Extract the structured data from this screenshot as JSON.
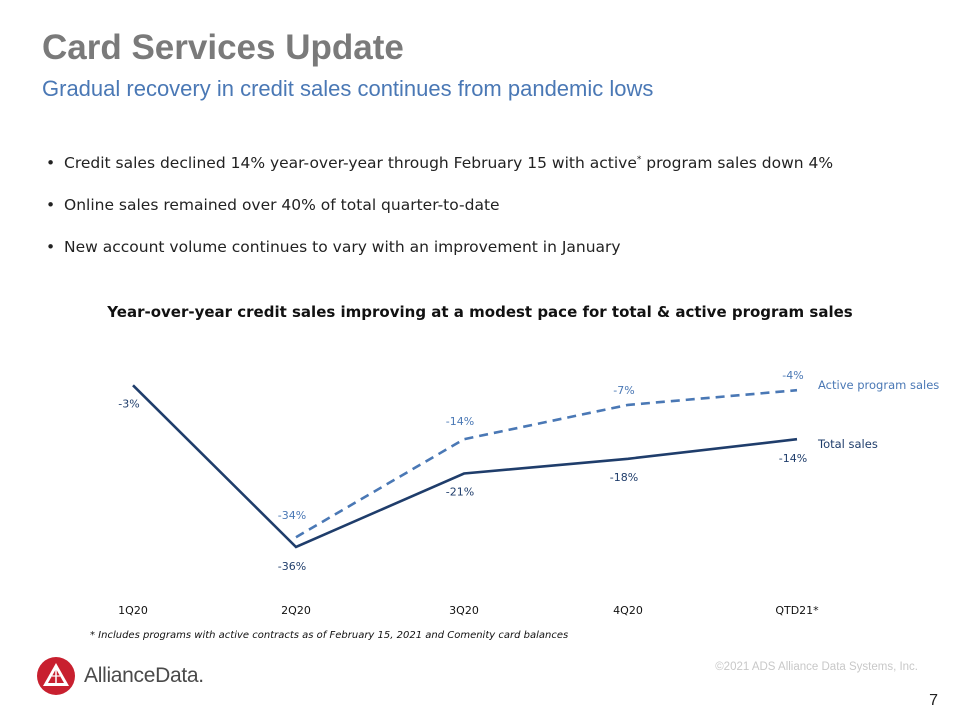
{
  "header": {
    "title": "Card Services Update",
    "subtitle": "Gradual recovery in credit sales continues from pandemic lows"
  },
  "bullets": [
    {
      "text": "Credit sales declined 14% year-over-year through February 15 with active",
      "sup": "*",
      "tail": " program sales down 4%"
    },
    {
      "text": "Online sales remained over 40% of total quarter-to-date",
      "sup": "",
      "tail": ""
    },
    {
      "text": "New account volume continues to vary with an improvement in January",
      "sup": "",
      "tail": ""
    }
  ],
  "chart_data": {
    "type": "line",
    "title": "Year-over-year  credit sales improving at a modest pace for total & active program sales",
    "categories": [
      "1Q20",
      "2Q20",
      "3Q20",
      "4Q20",
      "QTD21*"
    ],
    "series": [
      {
        "name": "Total sales",
        "values": [
          -3,
          -36,
          -21,
          -18,
          -14
        ],
        "labels": [
          "-3%",
          "-36%",
          "-21%",
          "-18%",
          "-14%"
        ],
        "color": "#1f3d6b",
        "dashed": false
      },
      {
        "name": "Active program sales",
        "values": [
          null,
          -34,
          -14,
          -7,
          -4
        ],
        "labels": [
          "",
          "-34%",
          "-14%",
          "-7%",
          "-4%"
        ],
        "color": "#4a78b5",
        "dashed": true
      }
    ],
    "grid": false,
    "legend": "inline-right"
  },
  "footnote": "* Includes programs with active contracts as of February 15, 2021 and Comenity card balances",
  "footer": {
    "logo_text": "AllianceData.",
    "copyright": "©2021 ADS Alliance Data Systems, Inc.",
    "page_number": "7"
  },
  "colors": {
    "title": "#7a7a7a",
    "subtitle": "#4a78b5",
    "total_line": "#1f3d6b",
    "active_line": "#4a78b5",
    "logo_red": "#c8202f"
  }
}
